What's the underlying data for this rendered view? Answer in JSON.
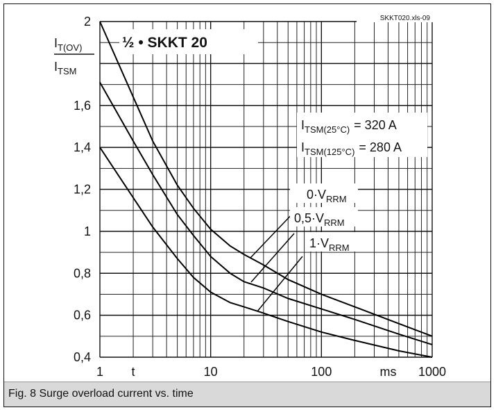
{
  "caption": "Fig. 8 Surge overload current vs. time",
  "file_id": "SKKT020.xls-09",
  "chart_data": {
    "type": "line",
    "title": "½ • SKKT 20",
    "x_scale": "log",
    "xlim": [
      1,
      1000
    ],
    "ylim": [
      0.4,
      2.0
    ],
    "x_ticks": [
      {
        "value": 1,
        "label": "1"
      },
      {
        "value": 2,
        "label": "t"
      },
      {
        "value": 10,
        "label": "10"
      },
      {
        "value": 100,
        "label": "100"
      },
      {
        "value": 400,
        "label": "ms"
      },
      {
        "value": 1000,
        "label": "1000"
      }
    ],
    "y_ticks": [
      {
        "value": 0.4,
        "label": "0,4"
      },
      {
        "value": 0.6,
        "label": "0,6"
      },
      {
        "value": 0.8,
        "label": "0,8"
      },
      {
        "value": 1.0,
        "label": "1"
      },
      {
        "value": 1.2,
        "label": "1,2"
      },
      {
        "value": 1.4,
        "label": "1,4"
      },
      {
        "value": 1.6,
        "label": "1,6"
      },
      {
        "value": 2.0,
        "label": "2"
      }
    ],
    "ylabel": {
      "num_main": "I",
      "num_sub": "T(OV)",
      "den_main": "I",
      "den_sub": "TSM"
    },
    "itsm": [
      {
        "main": "I",
        "sub": "TSM(25°C)",
        "value": "= 320 A"
      },
      {
        "main": "I",
        "sub": "TSM(125°C)",
        "value": "= 280 A"
      }
    ],
    "series": [
      {
        "name_main": "0·V",
        "name_sub": "RRM",
        "x": [
          1,
          2,
          3,
          5,
          7,
          10,
          15,
          20,
          30,
          50,
          100,
          200,
          500,
          1000
        ],
        "y": [
          2.0,
          1.64,
          1.43,
          1.22,
          1.11,
          1.01,
          0.93,
          0.89,
          0.84,
          0.77,
          0.7,
          0.64,
          0.56,
          0.5
        ]
      },
      {
        "name_main": "0,5·V",
        "name_sub": "RRM",
        "x": [
          1,
          2,
          3,
          5,
          7,
          10,
          15,
          20,
          30,
          50,
          100,
          200,
          500,
          1000
        ],
        "y": [
          1.71,
          1.43,
          1.27,
          1.08,
          0.98,
          0.88,
          0.8,
          0.76,
          0.73,
          0.68,
          0.63,
          0.58,
          0.51,
          0.46
        ]
      },
      {
        "name_main": "1·V",
        "name_sub": "RRM",
        "x": [
          1,
          2,
          3,
          5,
          7,
          10,
          15,
          20,
          30,
          50,
          100,
          200,
          500,
          1000
        ],
        "y": [
          1.4,
          1.16,
          1.02,
          0.87,
          0.78,
          0.71,
          0.66,
          0.64,
          0.61,
          0.57,
          0.52,
          0.48,
          0.43,
          0.4
        ]
      }
    ]
  }
}
